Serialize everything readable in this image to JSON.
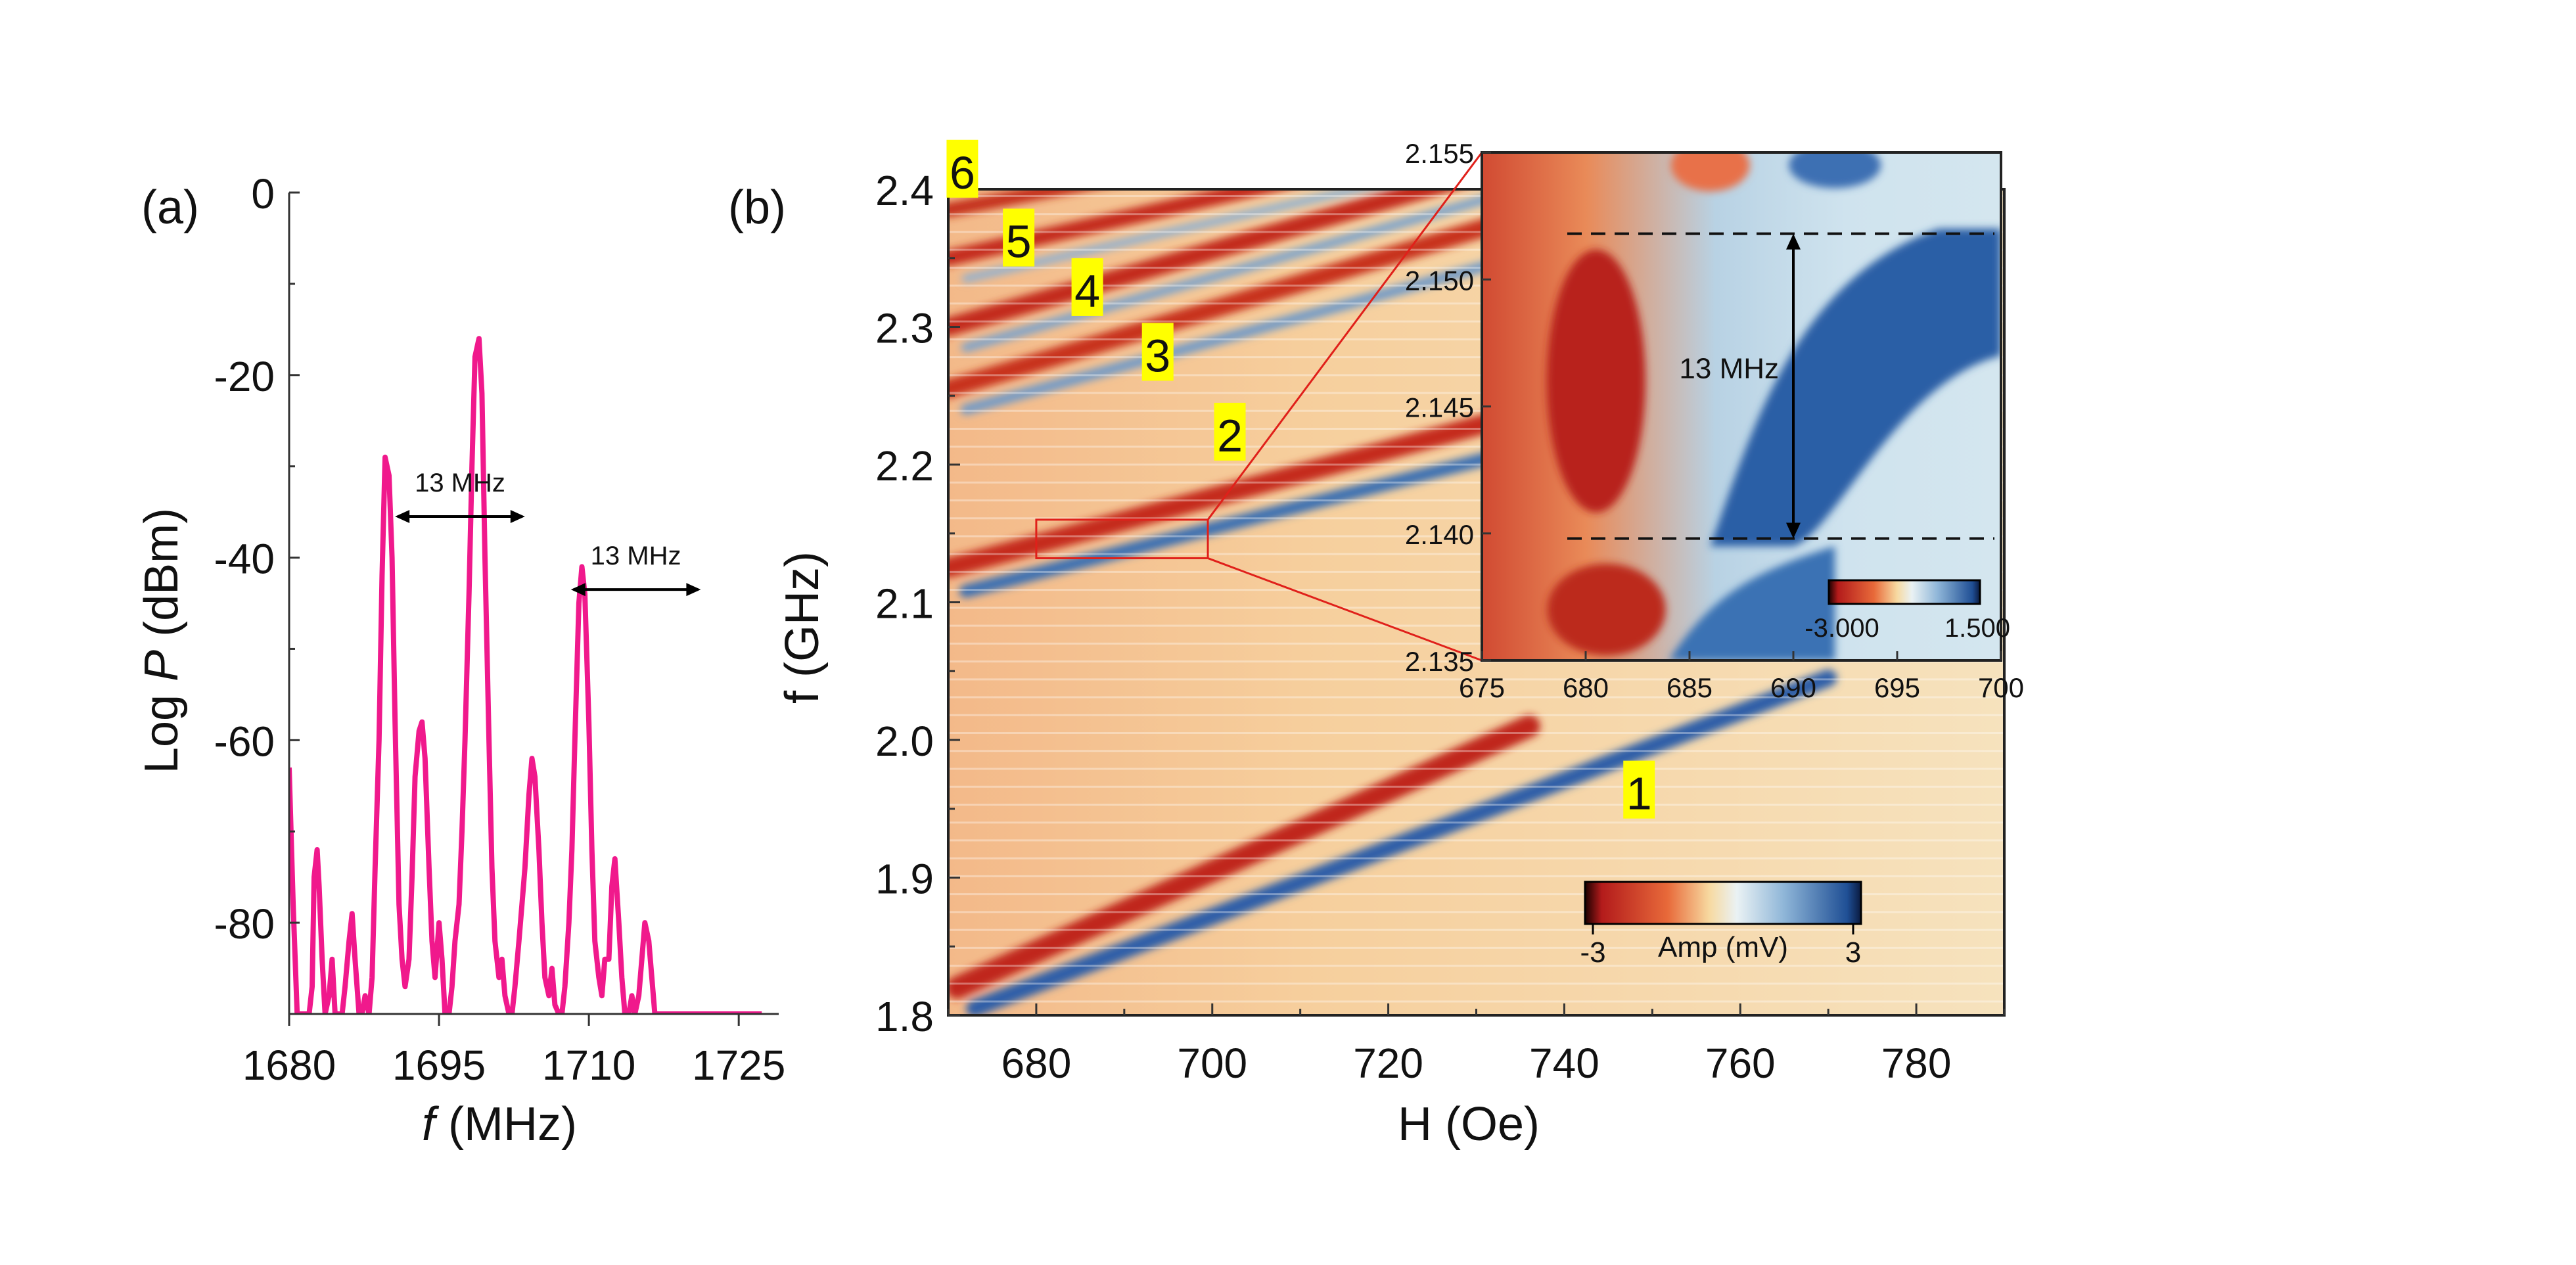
{
  "panel_labels": {
    "a": "(a)",
    "b": "(b)"
  },
  "chart_data": [
    {
      "id": "a",
      "type": "line",
      "title": "",
      "xlabel_pre": "",
      "xlabel_var": "f",
      "xlabel_post": " (MHz)",
      "ylabel_pre": "Log ",
      "ylabel_var": "P",
      "ylabel_post": " (dBm)",
      "xlim": [
        1680,
        1729
      ],
      "ylim": [
        -90,
        0
      ],
      "xticks": [
        1680,
        1695,
        1710,
        1725
      ],
      "yticks": [
        0,
        -20,
        -40,
        -60,
        -80
      ],
      "color": "#f0198c",
      "series": [
        {
          "x": [
            1680.0,
            1680.4,
            1680.8,
            1681.0,
            1681.3,
            1681.6,
            1682.0,
            1682.3,
            1682.5,
            1682.8,
            1683.0,
            1683.3,
            1683.6,
            1684.0,
            1684.3,
            1684.6,
            1685.0,
            1685.3,
            1685.6,
            1686.0,
            1686.3,
            1686.6,
            1687.0,
            1687.3,
            1687.6,
            1688.0,
            1688.3,
            1688.6,
            1689.0,
            1689.3,
            1689.6,
            1690.0,
            1690.3,
            1690.6,
            1691.0,
            1691.3,
            1691.6,
            1692.0,
            1692.3,
            1692.6,
            1693.0,
            1693.3,
            1693.6,
            1694.0,
            1694.3,
            1694.6,
            1695.0,
            1695.3,
            1695.6,
            1696.0,
            1696.3,
            1696.6,
            1697.0,
            1697.3,
            1697.6,
            1698.0,
            1698.3,
            1698.6,
            1699.0,
            1699.3,
            1699.6,
            1700.0,
            1700.3,
            1700.6,
            1701.0,
            1701.3,
            1701.6,
            1702.0,
            1702.3,
            1702.6,
            1703.0,
            1703.3,
            1703.6,
            1704.0,
            1704.3,
            1704.6,
            1705.0,
            1705.3,
            1705.6,
            1706.0,
            1706.3,
            1706.6,
            1707.0,
            1707.3,
            1707.6,
            1708.0,
            1708.3,
            1708.6,
            1709.0,
            1709.3,
            1709.6,
            1710.0,
            1710.3,
            1710.6,
            1711.0,
            1711.3,
            1711.6,
            1712.0,
            1712.3,
            1712.6,
            1713.0,
            1713.3,
            1713.6,
            1714.0,
            1714.3,
            1714.6,
            1715.0,
            1715.3,
            1715.6,
            1716.0,
            1716.3,
            1716.6,
            1717.0,
            1717.3,
            1717.6,
            1718.0,
            1718.3,
            1718.6,
            1719.0,
            1719.3,
            1719.6,
            1720.0,
            1720.3,
            1720.6,
            1721.0,
            1721.3,
            1721.6,
            1722.0,
            1722.3,
            1722.6,
            1723.0,
            1723.3,
            1723.6,
            1724.0,
            1724.3,
            1724.6,
            1725.0,
            1725.3,
            1725.6,
            1726.0,
            1726.3,
            1726.6,
            1727.0,
            1727.3
          ],
          "y": [
            -63,
            -78,
            -90,
            -90,
            -90,
            -90,
            -90,
            -87,
            -75,
            -72,
            -76,
            -84,
            -90,
            -88,
            -84,
            -90,
            -90,
            -90,
            -87,
            -82,
            -79,
            -84,
            -90,
            -90,
            -88,
            -90,
            -86,
            -74,
            -60,
            -42,
            -29,
            -31,
            -40,
            -58,
            -78,
            -84,
            -87,
            -84,
            -75,
            -64,
            -59,
            -58,
            -62,
            -74,
            -82,
            -86,
            -80,
            -84,
            -90,
            -90,
            -87,
            -82,
            -78,
            -70,
            -60,
            -44,
            -30,
            -18,
            -16,
            -22,
            -40,
            -60,
            -74,
            -82,
            -86,
            -84,
            -88,
            -90,
            -90,
            -87,
            -82,
            -78,
            -74,
            -66,
            -62,
            -64,
            -72,
            -80,
            -86,
            -88,
            -85,
            -89,
            -90,
            -90,
            -87,
            -80,
            -72,
            -60,
            -45,
            -41,
            -44,
            -58,
            -72,
            -82,
            -86,
            -88,
            -84,
            -84,
            -76,
            -73,
            -80,
            -86,
            -90,
            -90,
            -88,
            -90,
            -88,
            -84,
            -80,
            -82,
            -86,
            -90,
            -90,
            -90,
            -90,
            -90,
            -90,
            -90,
            -90,
            -90,
            -90,
            -90,
            -90,
            -90,
            -90,
            -90,
            -90,
            -90,
            -90,
            -90,
            -90,
            -90,
            -90,
            -90,
            -90,
            -90,
            -90,
            -90,
            -90,
            -90,
            -90,
            -90,
            -90,
            -90
          ]
        }
      ],
      "annotations": [
        {
          "text": "13 MHz",
          "x1": 1690.6,
          "x2": 1703.6,
          "y": -35.5
        },
        {
          "text": "13 MHz",
          "x1": 1708.2,
          "x2": 1721.2,
          "y": -43.5
        }
      ]
    },
    {
      "id": "b",
      "type": "heatmap",
      "title": "",
      "xlabel": "H (Oe)",
      "ylabel": "f (GHz)",
      "xlim": [
        670,
        790
      ],
      "ylim": [
        1.8,
        2.4
      ],
      "xticks": [
        680,
        700,
        720,
        740,
        760,
        780
      ],
      "yticks": [
        1.8,
        1.9,
        2.0,
        2.1,
        2.2,
        2.3,
        2.4
      ],
      "mode_labels": [
        {
          "text": "1",
          "x": 748.5,
          "y": 1.962
        },
        {
          "text": "2",
          "x": 702.0,
          "y": 2.222
        },
        {
          "text": "3",
          "x": 693.8,
          "y": 2.28
        },
        {
          "text": "4",
          "x": 685.8,
          "y": 2.327
        },
        {
          "text": "5",
          "x": 678.0,
          "y": 2.363
        },
        {
          "text": "6",
          "x": 671.6,
          "y": 2.413
        }
      ],
      "colorbar": {
        "label": "Amp (mV)",
        "min_label": "-3",
        "max_label": "3",
        "min": -3,
        "max": 3
      },
      "zoom_box": {
        "x": [
          680,
          699.5
        ],
        "y": [
          2.132,
          2.16
        ]
      }
    },
    {
      "id": "b-inset",
      "type": "heatmap",
      "title": "",
      "xlim": [
        675,
        700
      ],
      "ylim": [
        2.135,
        2.155
      ],
      "xticks": [
        675,
        680,
        685,
        690,
        695,
        700
      ],
      "yticks": [
        2.135,
        2.14,
        2.145,
        2.15,
        2.155
      ],
      "yticklabels": [
        "2.135",
        "2.140",
        "2.145",
        "2.150",
        "2.155"
      ],
      "annotation": {
        "text": "13 MHz",
        "y_top": 2.1518,
        "y_bottom": 2.1398
      },
      "colorbar": {
        "min_label": "-3.000",
        "max_label": "1.500",
        "min": -3.0,
        "max": 1.5
      }
    }
  ]
}
